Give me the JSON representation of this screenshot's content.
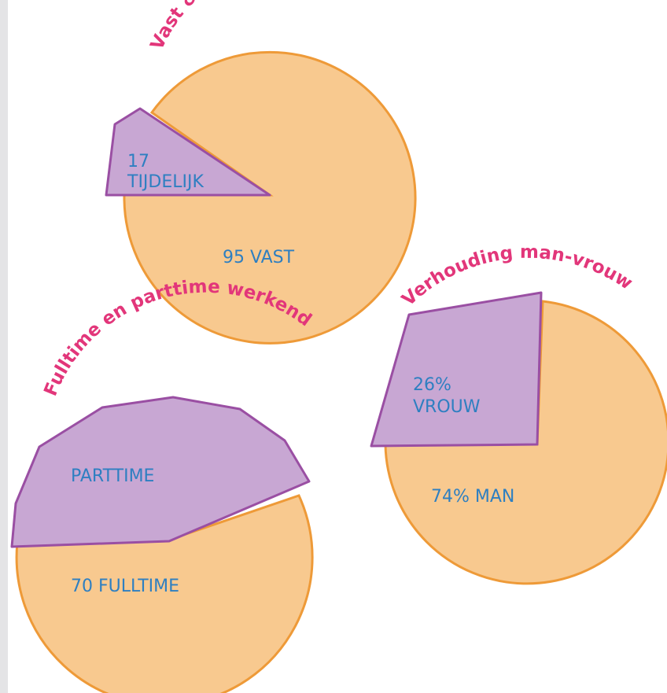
{
  "colors": {
    "major_fill": "#f8c98f",
    "major_stroke": "#ee9a38",
    "minor_fill": "#c8a7d3",
    "minor_stroke": "#9a4fa3",
    "label": "#2e7fc1",
    "title": "#e2367a"
  },
  "chart_data": [
    {
      "type": "pie",
      "title": "Vast & tijdelijk dienstverband",
      "slices": [
        {
          "label": "95 VAST",
          "value": 95
        },
        {
          "label": "17 TIJDELIJK",
          "value": 17
        }
      ]
    },
    {
      "type": "pie",
      "title": "Verhouding man-vrouw",
      "slices": [
        {
          "label": "74% MAN",
          "value": 74
        },
        {
          "label": "26% VROUW",
          "value": 26
        }
      ]
    },
    {
      "type": "pie",
      "title": "Fulltime en parttime werkend",
      "slices": [
        {
          "label": "70 FULLTIME",
          "value": 70
        },
        {
          "label": "PARTTIME",
          "value": null
        }
      ]
    }
  ]
}
